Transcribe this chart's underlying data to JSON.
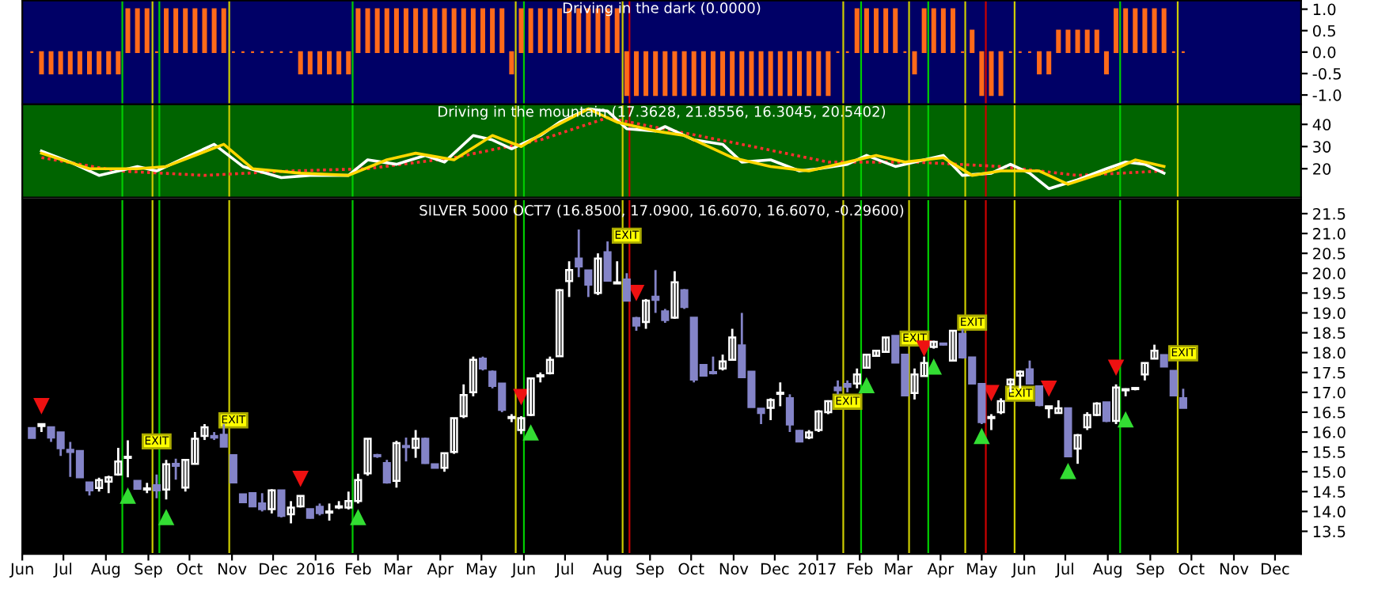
{
  "chart_data": [
    {
      "type": "bar",
      "title": "Driving in the dark (0.0000)",
      "color": "#ff6a1a",
      "tick_labels": "y",
      "x": [
        "2015-06-08",
        "2015-06-15",
        "2015-06-22",
        "2015-06-29",
        "2015-07-06",
        "2015-07-13",
        "2015-07-20",
        "2015-07-27",
        "2015-08-03",
        "2015-08-10",
        "2015-08-17",
        "2015-08-24",
        "2015-08-31",
        "2015-09-07",
        "2015-09-14",
        "2015-09-21",
        "2015-09-28",
        "2015-10-05",
        "2015-10-12",
        "2015-10-19",
        "2015-10-26",
        "2015-11-02",
        "2015-11-09",
        "2015-11-16",
        "2015-11-23",
        "2015-11-30",
        "2015-12-07",
        "2015-12-14",
        "2015-12-21",
        "2015-12-28",
        "2016-01-04",
        "2016-01-11",
        "2016-01-18",
        "2016-01-25",
        "2016-02-01",
        "2016-02-08",
        "2016-02-15",
        "2016-02-22",
        "2016-02-29",
        "2016-03-07",
        "2016-03-14",
        "2016-03-21",
        "2016-03-28",
        "2016-04-04",
        "2016-04-11",
        "2016-04-18",
        "2016-04-25",
        "2016-05-02",
        "2016-05-09",
        "2016-05-16",
        "2016-05-23",
        "2016-05-30",
        "2016-06-06",
        "2016-06-13",
        "2016-06-20",
        "2016-06-27",
        "2016-07-04",
        "2016-07-11",
        "2016-07-18",
        "2016-07-25",
        "2016-08-01",
        "2016-08-08",
        "2016-08-15",
        "2016-08-22",
        "2016-08-29",
        "2016-09-05",
        "2016-09-12",
        "2016-09-19",
        "2016-09-26",
        "2016-10-03",
        "2016-10-10",
        "2016-10-17",
        "2016-10-24",
        "2016-10-31",
        "2016-11-07",
        "2016-11-14",
        "2016-11-21",
        "2016-11-28",
        "2016-12-05",
        "2016-12-12",
        "2016-12-19",
        "2016-12-26",
        "2017-01-02",
        "2017-01-09",
        "2017-01-16",
        "2017-01-23",
        "2017-01-30",
        "2017-02-06",
        "2017-02-13",
        "2017-02-20",
        "2017-02-27",
        "2017-03-06",
        "2017-03-13",
        "2017-03-20",
        "2017-03-27",
        "2017-04-03",
        "2017-04-10",
        "2017-04-17",
        "2017-04-24",
        "2017-05-01",
        "2017-05-08",
        "2017-05-15",
        "2017-05-22",
        "2017-05-29",
        "2017-06-05",
        "2017-06-12",
        "2017-06-19",
        "2017-06-26",
        "2017-07-03",
        "2017-07-10",
        "2017-07-17",
        "2017-07-24",
        "2017-07-31",
        "2017-08-07",
        "2017-08-14",
        "2017-08-21",
        "2017-08-28",
        "2017-09-04",
        "2017-09-11",
        "2017-09-18",
        "2017-09-25"
      ],
      "values": [
        0,
        -0.5,
        -0.5,
        -0.5,
        -0.5,
        -0.5,
        -0.5,
        -0.5,
        -0.5,
        -0.5,
        1,
        1,
        1,
        0,
        1,
        1,
        1,
        1,
        1,
        1,
        1,
        0,
        0,
        0,
        0,
        0,
        0,
        0,
        -0.5,
        -0.5,
        -0.5,
        -0.5,
        -0.5,
        -0.5,
        1,
        1,
        1,
        1,
        1,
        1,
        1,
        1,
        1,
        1,
        1,
        1,
        1,
        1,
        1,
        1,
        -0.5,
        1,
        1,
        1,
        1,
        1,
        1,
        1,
        1,
        1,
        1,
        1,
        -1,
        -1,
        -1,
        -1,
        -1,
        -1,
        -1,
        -1,
        -1,
        -1,
        -1,
        -1,
        -1,
        -1,
        -1,
        -1,
        -1,
        -1,
        -1,
        -1,
        -1,
        -1,
        0,
        0,
        1,
        1,
        1,
        1,
        1,
        0,
        -0.5,
        1,
        1,
        1,
        1,
        0,
        0.5,
        -1,
        -1,
        -1,
        0,
        0,
        0,
        -0.5,
        -0.5,
        0.5,
        0.5,
        0.5,
        0.5,
        0.5,
        -0.5,
        1,
        1,
        1,
        1,
        1,
        1,
        0,
        0
      ],
      "xlim": [
        "2015-06-01",
        "2017-12-20"
      ],
      "ylim": [
        -1.22,
        1.2
      ],
      "yticks": [
        {
          "value": 1,
          "label": "1.0"
        },
        0.5,
        {
          "value": 0,
          "label": "0.0"
        },
        -0.5,
        {
          "value": -1,
          "label": "-1.0"
        }
      ],
      "ref_lines": [
        {
          "axis": "x",
          "value": "2015-08-13",
          "color": "#00cc00"
        },
        {
          "axis": "x",
          "value": "2015-09-04",
          "color": "#cccc00"
        },
        {
          "axis": "x",
          "value": "2015-09-09",
          "color": "#00cc00"
        },
        {
          "axis": "x",
          "value": "2015-10-30",
          "color": "#cccc00"
        },
        {
          "axis": "x",
          "value": "2016-01-28",
          "color": "#00cc00"
        },
        {
          "axis": "x",
          "value": "2016-05-26",
          "color": "#cccc00"
        },
        {
          "axis": "x",
          "value": "2016-06-01",
          "color": "#00cc00"
        },
        {
          "axis": "x",
          "value": "2016-08-12",
          "color": "#cccc00"
        },
        {
          "axis": "x",
          "value": "2016-08-17",
          "color": "#cc0000"
        },
        {
          "axis": "x",
          "value": "2017-01-20",
          "color": "#cccc00"
        },
        {
          "axis": "x",
          "value": "2017-02-02",
          "color": "#00cc00"
        },
        {
          "axis": "x",
          "value": "2017-03-09",
          "color": "#cccc00"
        },
        {
          "axis": "x",
          "value": "2017-03-23",
          "color": "#00cc00"
        },
        {
          "axis": "x",
          "value": "2017-04-19",
          "color": "#cccc00"
        },
        {
          "axis": "x",
          "value": "2017-05-04",
          "color": "#cc0000"
        },
        {
          "axis": "x",
          "value": "2017-05-25",
          "color": "#cccc00"
        },
        {
          "axis": "x",
          "value": "2017-08-10",
          "color": "#00cc00"
        },
        {
          "axis": "x",
          "value": "2017-09-21",
          "color": "#cccc00"
        }
      ]
    },
    {
      "type": "line",
      "title": "Driving in the mountain (17.3628, 21.8556, 16.3045, 20.5402)",
      "tick_labels": "y",
      "xlim": [
        "2015-06-01",
        "2017-12-20"
      ],
      "ylim": [
        7,
        49
      ],
      "yticks": [
        20,
        30,
        40
      ],
      "series": [
        {
          "color": "#ff3030",
          "line_style": "dotted",
          "x": [
            "2015-06-15",
            "2015-08-10",
            "2015-10-12",
            "2015-12-14",
            "2016-02-08",
            "2016-04-11",
            "2016-06-13",
            "2016-08-01",
            "2016-09-19",
            "2016-11-07",
            "2017-01-09",
            "2017-03-13",
            "2017-05-15",
            "2017-07-10",
            "2017-09-11"
          ],
          "values": [
            25,
            19,
            17,
            19,
            20,
            25,
            33,
            43,
            37,
            31,
            23,
            23,
            21,
            17,
            19
          ]
        },
        {
          "color": "#ffffff",
          "line_style": "solid",
          "x": [
            "2015-06-15",
            "2015-07-06",
            "2015-07-27",
            "2015-08-24",
            "2015-09-07",
            "2015-09-28",
            "2015-10-19",
            "2015-11-09",
            "2015-12-07",
            "2015-12-28",
            "2016-01-25",
            "2016-02-08",
            "2016-02-29",
            "2016-03-21",
            "2016-04-04",
            "2016-04-25",
            "2016-05-09",
            "2016-05-23",
            "2016-06-13",
            "2016-06-27",
            "2016-07-18",
            "2016-08-01",
            "2016-08-15",
            "2016-09-05",
            "2016-09-12",
            "2016-10-03",
            "2016-10-24",
            "2016-11-07",
            "2016-11-28",
            "2016-12-19",
            "2017-01-02",
            "2017-01-23",
            "2017-02-06",
            "2017-02-27",
            "2017-03-20",
            "2017-04-03",
            "2017-04-17",
            "2017-05-08",
            "2017-05-22",
            "2017-06-05",
            "2017-06-19",
            "2017-07-10",
            "2017-07-31",
            "2017-08-14",
            "2017-08-28",
            "2017-09-11"
          ],
          "values": [
            28,
            23,
            17,
            21,
            19,
            25,
            31,
            21,
            16,
            17,
            17,
            24,
            22,
            26,
            23,
            35,
            33,
            29,
            35,
            41,
            47,
            46,
            38,
            37,
            39,
            33,
            31,
            23,
            24,
            19,
            20,
            22,
            26,
            21,
            24,
            26,
            17,
            18,
            22,
            18,
            11,
            15,
            20,
            23,
            22,
            18
          ]
        },
        {
          "color": "#ffd700",
          "line_style": "solid",
          "x": [
            "2015-06-15",
            "2015-07-20",
            "2015-08-24",
            "2015-09-14",
            "2015-10-26",
            "2015-11-16",
            "2015-12-21",
            "2016-01-25",
            "2016-02-22",
            "2016-03-14",
            "2016-04-11",
            "2016-05-09",
            "2016-05-30",
            "2016-06-20",
            "2016-07-18",
            "2016-08-08",
            "2016-09-05",
            "2016-09-26",
            "2016-10-31",
            "2016-11-28",
            "2016-12-26",
            "2017-01-30",
            "2017-02-13",
            "2017-03-06",
            "2017-04-03",
            "2017-04-24",
            "2017-05-15",
            "2017-06-12",
            "2017-07-03",
            "2017-08-07",
            "2017-08-21",
            "2017-09-11"
          ],
          "values": [
            27,
            20,
            20,
            21,
            31,
            20,
            18,
            17,
            24,
            27,
            24,
            35,
            30,
            38,
            47,
            41,
            37,
            35,
            25,
            21,
            19,
            24,
            26,
            23,
            25,
            17,
            19,
            19,
            13,
            20,
            24,
            21
          ]
        }
      ],
      "ref_lines": [
        {
          "axis": "x",
          "value": "2015-08-13",
          "color": "#00cc00"
        },
        {
          "axis": "x",
          "value": "2015-09-04",
          "color": "#cccc00"
        },
        {
          "axis": "x",
          "value": "2015-09-09",
          "color": "#00cc00"
        },
        {
          "axis": "x",
          "value": "2015-10-30",
          "color": "#cccc00"
        },
        {
          "axis": "x",
          "value": "2016-01-28",
          "color": "#00cc00"
        },
        {
          "axis": "x",
          "value": "2016-05-26",
          "color": "#cccc00"
        },
        {
          "axis": "x",
          "value": "2016-06-01",
          "color": "#00cc00"
        },
        {
          "axis": "x",
          "value": "2016-08-12",
          "color": "#cccc00"
        },
        {
          "axis": "x",
          "value": "2016-08-17",
          "color": "#cc0000"
        },
        {
          "axis": "x",
          "value": "2017-01-20",
          "color": "#cccc00"
        },
        {
          "axis": "x",
          "value": "2017-02-02",
          "color": "#00cc00"
        },
        {
          "axis": "x",
          "value": "2017-03-09",
          "color": "#cccc00"
        },
        {
          "axis": "x",
          "value": "2017-03-23",
          "color": "#00cc00"
        },
        {
          "axis": "x",
          "value": "2017-04-19",
          "color": "#cccc00"
        },
        {
          "axis": "x",
          "value": "2017-05-04",
          "color": "#cc0000"
        },
        {
          "axis": "x",
          "value": "2017-05-25",
          "color": "#cccc00"
        },
        {
          "axis": "x",
          "value": "2017-08-10",
          "color": "#00cc00"
        },
        {
          "axis": "x",
          "value": "2017-09-21",
          "color": "#cccc00"
        }
      ]
    },
    {
      "type": "candlestick",
      "title": "SILVER 5000 OCT7 (16.8500, 17.0900, 16.6070, 16.6070, -0.29600)",
      "colors": [
        "#8484c8",
        "#ffffff",
        "#8484c8",
        "#8484c8",
        "#8484c8",
        "#8484c8",
        "#8484c8",
        "#ffffff",
        "#ffffff",
        "#ffffff",
        "#ffffff",
        "#8484c8",
        "#ffffff",
        "#8484c8",
        "#ffffff",
        "#8484c8",
        "#ffffff",
        "#ffffff",
        "#ffffff",
        "#8484c8",
        "#8484c8",
        "#8484c8",
        "#8484c8",
        "#8484c8",
        "#8484c8",
        "#ffffff",
        "#8484c8",
        "#ffffff",
        "#ffffff",
        "#8484c8",
        "#8484c8",
        "#ffffff",
        "#ffffff",
        "#ffffff",
        "#ffffff",
        "#ffffff",
        "#8484c8",
        "#8484c8",
        "#ffffff",
        "#8484c8",
        "#ffffff",
        "#8484c8",
        "#8484c8",
        "#ffffff",
        "#ffffff",
        "#ffffff",
        "#ffffff",
        "#8484c8",
        "#8484c8",
        "#8484c8",
        "#ffffff",
        "#ffffff",
        "#ffffff",
        "#ffffff",
        "#ffffff",
        "#ffffff",
        "#ffffff",
        "#8484c8",
        "#8484c8",
        "#ffffff",
        "#8484c8",
        "#ffffff",
        "#8484c8",
        "#8484c8",
        "#ffffff",
        "#8484c8",
        "#8484c8",
        "#ffffff",
        "#8484c8",
        "#8484c8",
        "#8484c8",
        "#8484c8",
        "#ffffff",
        "#ffffff",
        "#8484c8",
        "#8484c8",
        "#8484c8",
        "#ffffff",
        "#ffffff",
        "#8484c8",
        "#8484c8",
        "#ffffff",
        "#ffffff",
        "#ffffff",
        "#8484c8",
        "#8484c8",
        "#ffffff",
        "#ffffff",
        "#ffffff",
        "#ffffff",
        "#8484c8",
        "#8484c8",
        "#ffffff",
        "#ffffff",
        "#ffffff",
        "#8484c8",
        "#ffffff",
        "#8484c8",
        "#8484c8",
        "#8484c8",
        "#ffffff",
        "#ffffff",
        "#ffffff",
        "#ffffff",
        "#8484c8",
        "#8484c8",
        "#ffffff",
        "#ffffff",
        "#8484c8",
        "#ffffff",
        "#ffffff",
        "#ffffff",
        "#8484c8",
        "#ffffff",
        "#ffffff",
        "#ffffff",
        "#ffffff",
        "#ffffff",
        "#8484c8",
        "#8484c8",
        "#8484c8"
      ],
      "x": [
        "2015-06-08",
        "2015-06-15",
        "2015-06-22",
        "2015-06-29",
        "2015-07-06",
        "2015-07-13",
        "2015-07-20",
        "2015-07-27",
        "2015-08-03",
        "2015-08-10",
        "2015-08-17",
        "2015-08-24",
        "2015-08-31",
        "2015-09-07",
        "2015-09-14",
        "2015-09-21",
        "2015-09-28",
        "2015-10-05",
        "2015-10-12",
        "2015-10-19",
        "2015-10-26",
        "2015-11-02",
        "2015-11-09",
        "2015-11-16",
        "2015-11-23",
        "2015-11-30",
        "2015-12-07",
        "2015-12-14",
        "2015-12-21",
        "2015-12-28",
        "2016-01-04",
        "2016-01-11",
        "2016-01-18",
        "2016-01-25",
        "2016-02-01",
        "2016-02-08",
        "2016-02-15",
        "2016-02-22",
        "2016-02-29",
        "2016-03-07",
        "2016-03-14",
        "2016-03-21",
        "2016-03-28",
        "2016-04-04",
        "2016-04-11",
        "2016-04-18",
        "2016-04-25",
        "2016-05-02",
        "2016-05-09",
        "2016-05-16",
        "2016-05-23",
        "2016-05-30",
        "2016-06-06",
        "2016-06-13",
        "2016-06-20",
        "2016-06-27",
        "2016-07-04",
        "2016-07-11",
        "2016-07-18",
        "2016-07-25",
        "2016-08-01",
        "2016-08-08",
        "2016-08-15",
        "2016-08-22",
        "2016-08-29",
        "2016-09-05",
        "2016-09-12",
        "2016-09-19",
        "2016-09-26",
        "2016-10-03",
        "2016-10-10",
        "2016-10-17",
        "2016-10-24",
        "2016-10-31",
        "2016-11-07",
        "2016-11-14",
        "2016-11-21",
        "2016-11-28",
        "2016-12-05",
        "2016-12-12",
        "2016-12-19",
        "2016-12-26",
        "2017-01-02",
        "2017-01-09",
        "2017-01-16",
        "2017-01-23",
        "2017-01-30",
        "2017-02-06",
        "2017-02-13",
        "2017-02-20",
        "2017-02-27",
        "2017-03-06",
        "2017-03-13",
        "2017-03-20",
        "2017-03-27",
        "2017-04-03",
        "2017-04-10",
        "2017-04-17",
        "2017-04-24",
        "2017-05-01",
        "2017-05-08",
        "2017-05-15",
        "2017-05-22",
        "2017-05-29",
        "2017-06-05",
        "2017-06-12",
        "2017-06-19",
        "2017-06-26",
        "2017-07-03",
        "2017-07-10",
        "2017-07-17",
        "2017-07-24",
        "2017-07-31",
        "2017-08-07",
        "2017-08-14",
        "2017-08-21",
        "2017-08-28",
        "2017-09-04",
        "2017-09-11",
        "2017-09-18",
        "2017-09-25"
      ],
      "ohlc": [
        [
          16.1,
          16.1,
          15.85,
          15.85
        ],
        [
          16.2,
          16.2,
          16.0,
          16.15
        ],
        [
          16.12,
          16.12,
          15.75,
          15.86
        ],
        [
          15.99,
          15.99,
          15.4,
          15.59
        ],
        [
          15.55,
          15.75,
          14.87,
          15.5
        ],
        [
          15.52,
          15.52,
          14.86,
          14.86
        ],
        [
          14.73,
          14.73,
          14.4,
          14.53
        ],
        [
          14.59,
          14.85,
          14.5,
          14.79
        ],
        [
          14.75,
          14.9,
          14.46,
          14.86
        ],
        [
          14.93,
          15.6,
          14.9,
          15.26
        ],
        [
          15.35,
          15.79,
          14.86,
          15.35
        ],
        [
          14.77,
          14.77,
          14.55,
          14.57
        ],
        [
          14.55,
          14.72,
          14.46,
          14.55
        ],
        [
          14.66,
          14.93,
          14.33,
          14.53
        ],
        [
          14.55,
          15.3,
          14.3,
          15.19
        ],
        [
          15.2,
          15.33,
          14.8,
          15.15
        ],
        [
          14.6,
          15.3,
          14.5,
          15.3
        ],
        [
          15.2,
          16.0,
          15.2,
          15.83
        ],
        [
          15.9,
          16.2,
          15.8,
          16.12
        ],
        [
          15.9,
          16.0,
          15.8,
          15.86
        ],
        [
          15.93,
          16.2,
          15.63,
          15.63
        ],
        [
          15.42,
          15.42,
          14.73,
          14.73
        ],
        [
          14.43,
          14.43,
          14.23,
          14.23
        ],
        [
          14.46,
          14.46,
          14.13,
          14.13
        ],
        [
          14.2,
          14.46,
          14.0,
          14.06
        ],
        [
          14.06,
          14.56,
          13.95,
          14.53
        ],
        [
          14.53,
          14.53,
          13.85,
          13.89
        ],
        [
          13.93,
          14.26,
          13.7,
          14.1
        ],
        [
          14.13,
          14.39,
          14.1,
          14.39
        ],
        [
          14.06,
          14.06,
          13.82,
          13.84
        ],
        [
          14.12,
          14.2,
          13.9,
          13.96
        ],
        [
          13.97,
          14.2,
          13.77,
          13.97
        ],
        [
          14.1,
          14.26,
          14.06,
          14.1
        ],
        [
          14.1,
          14.5,
          14.05,
          14.26
        ],
        [
          14.26,
          14.95,
          14.2,
          14.79
        ],
        [
          14.96,
          15.83,
          14.9,
          15.83
        ],
        [
          15.4,
          15.45,
          15.35,
          15.39
        ],
        [
          15.22,
          15.3,
          14.7,
          14.73
        ],
        [
          14.77,
          15.78,
          14.6,
          15.72
        ],
        [
          15.65,
          15.86,
          15.26,
          15.62
        ],
        [
          15.6,
          16.05,
          15.35,
          15.83
        ],
        [
          15.83,
          15.86,
          15.2,
          15.22
        ],
        [
          15.19,
          15.2,
          15.1,
          15.1
        ],
        [
          15.1,
          15.47,
          15.0,
          15.47
        ],
        [
          15.5,
          16.35,
          15.45,
          16.35
        ],
        [
          16.4,
          17.2,
          16.35,
          16.93
        ],
        [
          17.0,
          17.9,
          16.9,
          17.82
        ],
        [
          17.85,
          17.9,
          17.55,
          17.6
        ],
        [
          17.52,
          17.55,
          17.1,
          17.16
        ],
        [
          17.22,
          17.22,
          16.5,
          16.56
        ],
        [
          16.35,
          16.45,
          16.25,
          16.35
        ],
        [
          16.05,
          16.4,
          15.95,
          16.35
        ],
        [
          16.43,
          17.35,
          16.4,
          17.35
        ],
        [
          17.4,
          17.5,
          17.25,
          17.4
        ],
        [
          17.48,
          17.9,
          17.45,
          17.82
        ],
        [
          17.91,
          19.6,
          17.9,
          19.57
        ],
        [
          19.8,
          20.3,
          19.4,
          20.08
        ],
        [
          20.37,
          21.1,
          19.9,
          20.17
        ],
        [
          20.07,
          20.07,
          19.4,
          19.71
        ],
        [
          19.5,
          20.5,
          19.45,
          20.37
        ],
        [
          20.53,
          20.8,
          19.81,
          19.81
        ],
        [
          19.74,
          20.3,
          19.74,
          19.74
        ],
        [
          19.84,
          20.0,
          19.3,
          19.31
        ],
        [
          18.87,
          18.9,
          18.55,
          18.68
        ],
        [
          18.77,
          19.35,
          18.6,
          19.31
        ],
        [
          19.41,
          20.08,
          19.0,
          19.33
        ],
        [
          19.04,
          19.1,
          18.75,
          18.82
        ],
        [
          18.88,
          20.05,
          18.85,
          19.77
        ],
        [
          19.57,
          19.6,
          19.1,
          19.15
        ],
        [
          18.88,
          18.88,
          17.25,
          17.32
        ],
        [
          17.69,
          17.69,
          17.4,
          17.42
        ],
        [
          17.5,
          17.9,
          17.45,
          17.48
        ],
        [
          17.6,
          17.95,
          17.55,
          17.78
        ],
        [
          17.82,
          18.6,
          17.8,
          18.38
        ],
        [
          18.18,
          19.0,
          17.38,
          17.38
        ],
        [
          17.52,
          17.52,
          16.63,
          16.63
        ],
        [
          16.59,
          16.6,
          16.2,
          16.48
        ],
        [
          16.61,
          16.85,
          16.3,
          16.81
        ],
        [
          16.96,
          17.25,
          16.65,
          16.96
        ],
        [
          16.85,
          16.95,
          16.0,
          16.19
        ],
        [
          16.03,
          16.05,
          15.75,
          15.76
        ],
        [
          15.86,
          16.05,
          15.82,
          15.99
        ],
        [
          16.05,
          16.55,
          16.0,
          16.52
        ],
        [
          16.5,
          16.8,
          16.45,
          16.78
        ],
        [
          17.12,
          17.3,
          16.95,
          17.05
        ],
        [
          17.21,
          17.3,
          17.0,
          17.14
        ],
        [
          17.22,
          17.6,
          17.1,
          17.45
        ],
        [
          17.62,
          17.95,
          17.6,
          17.95
        ],
        [
          17.92,
          18.05,
          17.9,
          18.05
        ],
        [
          18.02,
          18.38,
          18.0,
          18.38
        ],
        [
          18.42,
          18.42,
          17.75,
          17.75
        ],
        [
          17.95,
          17.95,
          16.9,
          16.92
        ],
        [
          16.98,
          17.6,
          16.82,
          17.45
        ],
        [
          17.41,
          17.9,
          17.4,
          17.74
        ],
        [
          18.14,
          18.3,
          18.1,
          18.27
        ],
        [
          18.22,
          18.25,
          18.18,
          18.2
        ],
        [
          17.8,
          18.55,
          17.8,
          18.55
        ],
        [
          18.47,
          18.6,
          17.85,
          17.88
        ],
        [
          17.88,
          17.88,
          17.2,
          17.22
        ],
        [
          17.21,
          17.21,
          16.2,
          16.25
        ],
        [
          16.35,
          16.45,
          16.05,
          16.35
        ],
        [
          16.5,
          16.85,
          16.45,
          16.78
        ],
        [
          17.2,
          17.35,
          17.0,
          17.32
        ],
        [
          17.42,
          17.55,
          17.1,
          17.52
        ],
        [
          17.58,
          17.8,
          17.2,
          17.22
        ],
        [
          17.15,
          17.15,
          16.65,
          16.68
        ],
        [
          16.6,
          16.65,
          16.35,
          16.65
        ],
        [
          16.48,
          16.8,
          16.48,
          16.6
        ],
        [
          16.6,
          16.6,
          15.39,
          15.39
        ],
        [
          15.58,
          15.95,
          15.2,
          15.92
        ],
        [
          16.12,
          16.5,
          16.05,
          16.43
        ],
        [
          16.43,
          16.75,
          16.4,
          16.72
        ],
        [
          16.75,
          16.75,
          16.25,
          16.28
        ],
        [
          16.28,
          17.2,
          16.2,
          17.12
        ],
        [
          17.05,
          17.1,
          16.9,
          17.05
        ],
        [
          17.08,
          17.12,
          17.05,
          17.1
        ],
        [
          17.45,
          17.75,
          17.3,
          17.74
        ],
        [
          17.85,
          18.2,
          17.85,
          18.05
        ],
        [
          17.94,
          17.94,
          17.65,
          17.65
        ],
        [
          17.54,
          17.54,
          16.9,
          16.92
        ],
        [
          16.85,
          17.09,
          16.61,
          16.61
        ]
      ],
      "series": [
        {
          "type": "scatter",
          "marker": "triangle",
          "color": "#33dd33",
          "x": [
            "2015-08-17",
            "2015-09-14",
            "2016-02-01",
            "2016-06-06",
            "2017-02-06",
            "2017-03-27",
            "2017-05-01",
            "2017-07-03",
            "2017-08-14"
          ],
          "values": [
            14.4,
            13.86,
            13.86,
            15.99,
            17.18,
            17.65,
            15.9,
            15.02,
            16.32
          ]
        },
        {
          "type": "scatter",
          "marker": "triangle_down",
          "color": "#ee1111",
          "x": [
            "2015-06-15",
            "2015-12-21",
            "2016-05-30",
            "2016-08-22",
            "2017-03-20",
            "2017-05-08",
            "2017-06-19",
            "2017-08-07"
          ],
          "values": [
            16.65,
            14.82,
            16.88,
            19.5,
            18.1,
            16.98,
            17.09,
            17.62
          ]
        }
      ],
      "annotations": [
        {
          "text": "EXIT",
          "x": "2015-09-07",
          "y": 15.63
        },
        {
          "text": "EXIT",
          "x": "2015-11-02",
          "y": 16.16
        },
        {
          "text": "EXIT",
          "x": "2016-08-15",
          "y": 20.81
        },
        {
          "text": "EXIT",
          "x": "2017-01-23",
          "y": 16.63
        },
        {
          "text": "EXIT",
          "x": "2017-03-13",
          "y": 18.22
        },
        {
          "text": "EXIT",
          "x": "2017-04-24",
          "y": 18.62
        },
        {
          "text": "EXIT",
          "x": "2017-05-29",
          "y": 16.83
        },
        {
          "text": "EXIT",
          "x": "2017-09-25",
          "y": 17.85
        }
      ],
      "xlim": [
        "2015-06-01",
        "2017-12-20"
      ],
      "ylim": [
        12.93,
        21.86
      ],
      "yticks": [
        13.5,
        {
          "value": 14,
          "label": "14.0"
        },
        14.5,
        {
          "value": 15,
          "label": "15.0"
        },
        15.5,
        {
          "value": 16,
          "label": "16.0"
        },
        16.5,
        {
          "value": 17,
          "label": "17.0"
        },
        17.5,
        {
          "value": 18,
          "label": "18.0"
        },
        18.5,
        {
          "value": 19,
          "label": "19.0"
        },
        19.5,
        {
          "value": 20,
          "label": "20.0"
        },
        20.5,
        {
          "value": 21,
          "label": "21.0"
        },
        21.5
      ],
      "xticks": [
        {
          "value": "2015-06-01",
          "label": "Jun"
        },
        {
          "value": "2015-07-01",
          "label": "Jul"
        },
        {
          "value": "2015-08-01",
          "label": "Aug"
        },
        {
          "value": "2015-09-01",
          "label": "Sep"
        },
        {
          "value": "2015-10-01",
          "label": "Oct"
        },
        {
          "value": "2015-11-01",
          "label": "Nov"
        },
        {
          "value": "2015-12-01",
          "label": "Dec"
        },
        {
          "value": "2016-01-01",
          "label": "2016"
        },
        {
          "value": "2016-02-01",
          "label": "Feb"
        },
        {
          "value": "2016-03-01",
          "label": "Mar"
        },
        {
          "value": "2016-04-01",
          "label": "Apr"
        },
        {
          "value": "2016-05-01",
          "label": "May"
        },
        {
          "value": "2016-06-01",
          "label": "Jun"
        },
        {
          "value": "2016-07-01",
          "label": "Jul"
        },
        {
          "value": "2016-08-01",
          "label": "Aug"
        },
        {
          "value": "2016-09-01",
          "label": "Sep"
        },
        {
          "value": "2016-10-01",
          "label": "Oct"
        },
        {
          "value": "2016-11-01",
          "label": "Nov"
        },
        {
          "value": "2016-12-01",
          "label": "Dec"
        },
        {
          "value": "2017-01-01",
          "label": "2017"
        },
        {
          "value": "2017-02-01",
          "label": "Feb"
        },
        {
          "value": "2017-03-01",
          "label": "Mar"
        },
        {
          "value": "2017-04-01",
          "label": "Apr"
        },
        {
          "value": "2017-05-01",
          "label": "May"
        },
        {
          "value": "2017-06-01",
          "label": "Jun"
        },
        {
          "value": "2017-07-01",
          "label": "Jul"
        },
        {
          "value": "2017-08-01",
          "label": "Aug"
        },
        {
          "value": "2017-09-01",
          "label": "Sep"
        },
        {
          "value": "2017-10-01",
          "label": "Oct"
        },
        {
          "value": "2017-11-01",
          "label": "Nov"
        },
        {
          "value": "2017-12-01",
          "label": "Dec"
        }
      ],
      "ref_lines": [
        {
          "axis": "x",
          "value": "2015-08-13",
          "color": "#00cc00"
        },
        {
          "axis": "x",
          "value": "2015-09-04",
          "color": "#cccc00"
        },
        {
          "axis": "x",
          "value": "2015-09-09",
          "color": "#00cc00"
        },
        {
          "axis": "x",
          "value": "2015-10-30",
          "color": "#cccc00"
        },
        {
          "axis": "x",
          "value": "2016-01-28",
          "color": "#00cc00"
        },
        {
          "axis": "x",
          "value": "2016-05-26",
          "color": "#cccc00"
        },
        {
          "axis": "x",
          "value": "2016-06-01",
          "color": "#00cc00"
        },
        {
          "axis": "x",
          "value": "2016-08-12",
          "color": "#cccc00"
        },
        {
          "axis": "x",
          "value": "2016-08-17",
          "color": "#cc0000"
        },
        {
          "axis": "x",
          "value": "2017-01-20",
          "color": "#cccc00"
        },
        {
          "axis": "x",
          "value": "2017-02-02",
          "color": "#00cc00"
        },
        {
          "axis": "x",
          "value": "2017-03-09",
          "color": "#cccc00"
        },
        {
          "axis": "x",
          "value": "2017-03-23",
          "color": "#00cc00"
        },
        {
          "axis": "x",
          "value": "2017-04-19",
          "color": "#cccc00"
        },
        {
          "axis": "x",
          "value": "2017-05-04",
          "color": "#cc0000"
        },
        {
          "axis": "x",
          "value": "2017-05-25",
          "color": "#cccc00"
        },
        {
          "axis": "x",
          "value": "2017-08-10",
          "color": "#00cc00"
        },
        {
          "axis": "x",
          "value": "2017-09-21",
          "color": "#cccc00"
        }
      ]
    }
  ]
}
